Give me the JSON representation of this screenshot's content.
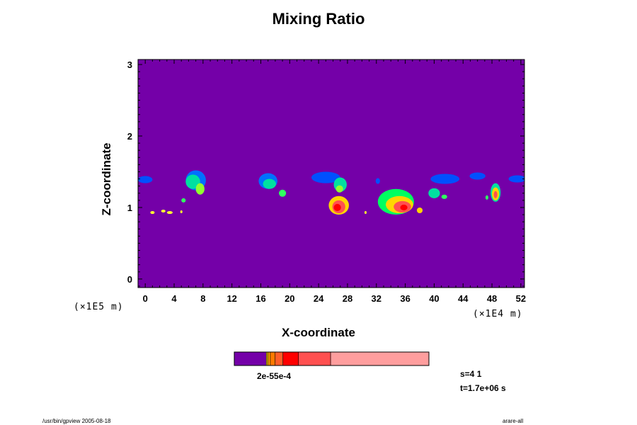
{
  "chart_data": {
    "type": "heatmap",
    "title": "Mixing Ratio",
    "xlabel": "X-coordinate",
    "ylabel": "Z-coordinate",
    "x_ticks": [
      "0",
      "4",
      "8",
      "12",
      "16",
      "20",
      "24",
      "28",
      "32",
      "36",
      "40",
      "44",
      "48",
      "52"
    ],
    "y_ticks": [
      "0",
      "1",
      "2",
      "3"
    ],
    "xlim": [
      -1,
      52.5
    ],
    "ylim": [
      -0.12,
      3.07
    ],
    "x_scale_label": "(×1E4 m)",
    "y_scale_label": "(×1E5 m)",
    "background_color": "#7400a8",
    "colorbar": {
      "label": "2e-55e-4",
      "segments": [
        {
          "color": "#7400a8",
          "frac": 0.165
        },
        {
          "color": "#ffd500",
          "frac": 0.008
        },
        {
          "color": "#ffa000",
          "frac": 0.012
        },
        {
          "color": "#ff7a00",
          "frac": 0.025
        },
        {
          "color": "#ff5e2a",
          "frac": 0.04
        },
        {
          "color": "#ff0000",
          "frac": 0.08
        },
        {
          "color": "#ff5050",
          "frac": 0.165
        },
        {
          "color": "#ff9e9e",
          "frac": 0.505
        }
      ]
    },
    "features": [
      {
        "x": 0.0,
        "z": 1.39,
        "rx": 1.0,
        "rz": 0.05,
        "color": "#0050ff"
      },
      {
        "x": 7.0,
        "z": 1.38,
        "rx": 1.4,
        "rz": 0.14,
        "color": "#0070ff"
      },
      {
        "x": 6.6,
        "z": 1.36,
        "rx": 1.0,
        "rz": 0.1,
        "color": "#00e0a0"
      },
      {
        "x": 7.6,
        "z": 1.26,
        "rx": 0.6,
        "rz": 0.08,
        "color": "#90ff30"
      },
      {
        "x": 5.3,
        "z": 1.1,
        "rx": 0.3,
        "rz": 0.03,
        "color": "#30ff60"
      },
      {
        "x": 17.0,
        "z": 1.37,
        "rx": 1.3,
        "rz": 0.11,
        "color": "#0070ff"
      },
      {
        "x": 17.2,
        "z": 1.33,
        "rx": 0.9,
        "rz": 0.07,
        "color": "#00e0a0"
      },
      {
        "x": 19.0,
        "z": 1.2,
        "rx": 0.5,
        "rz": 0.05,
        "color": "#30ff60"
      },
      {
        "x": 25.0,
        "z": 1.42,
        "rx": 2.0,
        "rz": 0.08,
        "color": "#0050ff"
      },
      {
        "x": 27.0,
        "z": 1.32,
        "rx": 0.9,
        "rz": 0.1,
        "color": "#00e0a0"
      },
      {
        "x": 26.9,
        "z": 1.26,
        "rx": 0.5,
        "rz": 0.05,
        "color": "#90ff30"
      },
      {
        "x": 26.8,
        "z": 1.03,
        "rx": 1.4,
        "rz": 0.13,
        "color": "#ffd500"
      },
      {
        "x": 26.8,
        "z": 1.01,
        "rx": 0.9,
        "rz": 0.09,
        "color": "#ff5050"
      },
      {
        "x": 26.6,
        "z": 1.0,
        "rx": 0.5,
        "rz": 0.05,
        "color": "#ff0000"
      },
      {
        "x": 32.2,
        "z": 1.37,
        "rx": 0.3,
        "rz": 0.04,
        "color": "#0050ff"
      },
      {
        "x": 34.7,
        "z": 1.08,
        "rx": 2.5,
        "rz": 0.18,
        "color": "#00ff60"
      },
      {
        "x": 35.2,
        "z": 1.04,
        "rx": 1.9,
        "rz": 0.12,
        "color": "#ffd500"
      },
      {
        "x": 35.6,
        "z": 1.01,
        "rx": 1.2,
        "rz": 0.08,
        "color": "#ff5050"
      },
      {
        "x": 35.8,
        "z": 1.0,
        "rx": 0.5,
        "rz": 0.04,
        "color": "#ff0000"
      },
      {
        "x": 38.0,
        "z": 0.96,
        "rx": 0.4,
        "rz": 0.04,
        "color": "#ffd500"
      },
      {
        "x": 41.5,
        "z": 1.4,
        "rx": 2.0,
        "rz": 0.07,
        "color": "#0050ff"
      },
      {
        "x": 40.0,
        "z": 1.2,
        "rx": 0.8,
        "rz": 0.07,
        "color": "#00e0a0"
      },
      {
        "x": 41.4,
        "z": 1.15,
        "rx": 0.4,
        "rz": 0.03,
        "color": "#30ff60"
      },
      {
        "x": 46.0,
        "z": 1.44,
        "rx": 1.1,
        "rz": 0.05,
        "color": "#0050ff"
      },
      {
        "x": 48.5,
        "z": 1.21,
        "rx": 0.7,
        "rz": 0.13,
        "color": "#00e0a0"
      },
      {
        "x": 48.5,
        "z": 1.19,
        "rx": 0.5,
        "rz": 0.09,
        "color": "#ffd500"
      },
      {
        "x": 48.5,
        "z": 1.18,
        "rx": 0.25,
        "rz": 0.05,
        "color": "#ff5050"
      },
      {
        "x": 51.5,
        "z": 1.4,
        "rx": 1.2,
        "rz": 0.05,
        "color": "#0050ff"
      },
      {
        "x": 47.3,
        "z": 1.14,
        "rx": 0.2,
        "rz": 0.03,
        "color": "#30ff60"
      },
      {
        "x": 1.0,
        "z": 0.93,
        "rx": 0.3,
        "rz": 0.02,
        "color": "#ffff30"
      },
      {
        "x": 2.5,
        "z": 0.95,
        "rx": 0.3,
        "rz": 0.02,
        "color": "#ffff30"
      },
      {
        "x": 3.4,
        "z": 0.93,
        "rx": 0.4,
        "rz": 0.02,
        "color": "#ffff30"
      },
      {
        "x": 5.0,
        "z": 0.94,
        "rx": 0.15,
        "rz": 0.02,
        "color": "#ffff30"
      },
      {
        "x": 30.5,
        "z": 0.93,
        "rx": 0.15,
        "rz": 0.02,
        "color": "#ffff30"
      }
    ]
  },
  "footer": {
    "stats_s": "s=4 1",
    "stats_t": "t=1.7e+06 s",
    "left_note": "/usr/bin/gpview 2005-08-18",
    "right_note": "arare-all"
  }
}
